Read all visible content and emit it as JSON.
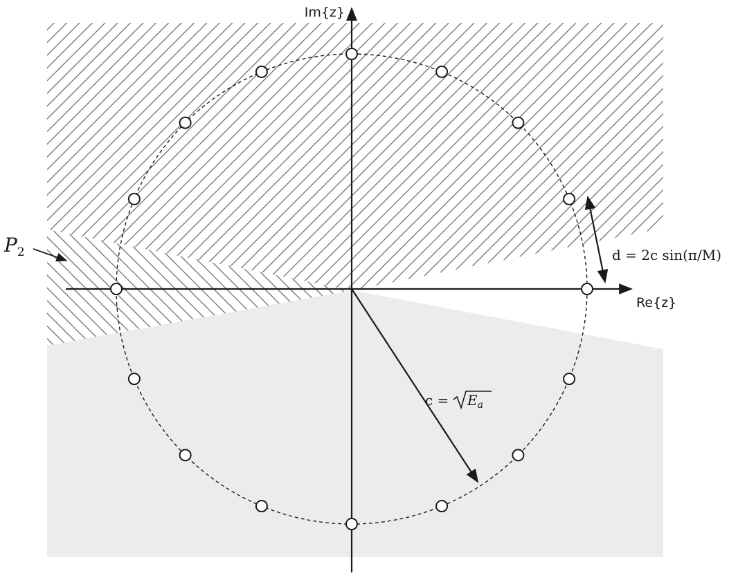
{
  "diagram": {
    "axes": {
      "real_label": "Re{z}",
      "imag_label": "Im{z}"
    },
    "constellation": {
      "points_count": 16,
      "circle_style": "dashed"
    },
    "labels": {
      "region": {
        "letter": "P",
        "subscript": "2"
      },
      "distance": "d = 2c sin(π/M)",
      "radius": {
        "lhs": "c =",
        "radicand": "E",
        "radicand_sub": "a"
      }
    },
    "colors": {
      "hatch": "#6f6f6f",
      "shade": "#ececec",
      "ink": "#1a1a1a"
    }
  }
}
